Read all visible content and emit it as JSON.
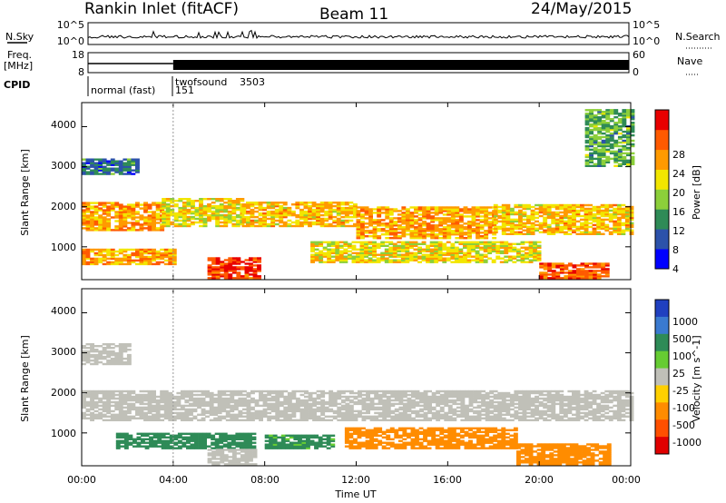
{
  "header": {
    "station": "Rankin Inlet (fitACF)",
    "beam": "Beam 11",
    "date": "24/May/2015"
  },
  "noise_panel": {
    "left_label": "N.Sky",
    "right_label": "N.Search",
    "left_ticks": [
      "10^5",
      "10^0"
    ],
    "right_ticks": [
      "10^5",
      "10^0"
    ]
  },
  "freq_panel": {
    "left_label_1": "Freq.",
    "left_label_2": "[MHz]",
    "right_label": "Nave",
    "left_ticks": [
      "18",
      "8"
    ],
    "right_ticks": [
      "60",
      "0"
    ]
  },
  "cpid_panel": {
    "label": "CPID",
    "modes": [
      {
        "name": "normal (fast)",
        "id": "151",
        "start_hour": 0,
        "end_hour": 4
      },
      {
        "name": "twofsound",
        "id": "3503",
        "start_hour": 4,
        "end_hour": 24
      }
    ]
  },
  "axes": {
    "xlabel": "Time UT",
    "x_tick_labels": [
      "00:00",
      "04:00",
      "08:00",
      "12:00",
      "16:00",
      "20:00",
      "00:00"
    ],
    "x_ticks_hours": [
      0,
      4,
      8,
      12,
      16,
      20,
      24
    ],
    "ylabel": "Slant Range [km]",
    "y_tick_labels": [
      "1000",
      "2000",
      "3000",
      "4000"
    ],
    "y_ticks": [
      1000,
      2000,
      3000,
      4000
    ],
    "ylim": [
      180,
      4600
    ],
    "xlim_hours": [
      0,
      24
    ]
  },
  "power_colorbar": {
    "label": "Power [dB]",
    "tick_labels": [
      "4",
      "8",
      "12",
      "16",
      "20",
      "24",
      "28"
    ],
    "colors": [
      "#0000ff",
      "#2c52aa",
      "#2f8b57",
      "#8ccf3a",
      "#f2e600",
      "#ff9a00",
      "#ff5a00",
      "#e80000"
    ]
  },
  "velocity_colorbar": {
    "label": "Velocity [m s^-1]",
    "tick_labels": [
      "1000",
      "500",
      "100",
      "25",
      "-25",
      "-100",
      "-500",
      "-1000"
    ],
    "colors": [
      "#2040c0",
      "#3a7ad0",
      "#2e8b57",
      "#66cc33",
      "#c0c0b8",
      "#ffd000",
      "#ff8c00",
      "#ff5000",
      "#e00000"
    ]
  },
  "chart_data": [
    {
      "type": "heatmap",
      "title": "",
      "xlabel": "",
      "ylabel": "Slant Range [km]",
      "quantity": "Power [dB]",
      "bands": [
        {
          "t0": 0.0,
          "t1": 3.5,
          "r0": 1400,
          "r1": 2100,
          "value": 22
        },
        {
          "t0": 3.5,
          "t1": 7.0,
          "r0": 1500,
          "r1": 2200,
          "value": 18
        },
        {
          "t0": 7.0,
          "t1": 12.0,
          "r0": 1500,
          "r1": 2100,
          "value": 20
        },
        {
          "t0": 12.0,
          "t1": 18.0,
          "r0": 1200,
          "r1": 2000,
          "value": 22
        },
        {
          "t0": 18.0,
          "t1": 24.0,
          "r0": 1300,
          "r1": 2050,
          "value": 20
        },
        {
          "t0": 0.0,
          "t1": 4.0,
          "r0": 550,
          "r1": 950,
          "value": 22
        },
        {
          "t0": 5.5,
          "t1": 7.8,
          "r0": 200,
          "r1": 700,
          "value": 28
        },
        {
          "t0": 10.0,
          "t1": 20.0,
          "r0": 600,
          "r1": 1100,
          "value": 18
        },
        {
          "t0": 20.0,
          "t1": 23.0,
          "r0": 200,
          "r1": 600,
          "value": 26
        },
        {
          "t0": 0.0,
          "t1": 2.5,
          "r0": 2800,
          "r1": 3200,
          "value": 8
        },
        {
          "t0": 22.0,
          "t1": 24.0,
          "r0": 3000,
          "r1": 4400,
          "value": 12
        }
      ]
    },
    {
      "type": "heatmap",
      "title": "",
      "xlabel": "Time UT",
      "ylabel": "Slant Range [km]",
      "quantity": "Velocity [m s^-1]",
      "bands": [
        {
          "t0": 0.0,
          "t1": 24.0,
          "r0": 1300,
          "r1": 2050,
          "value": 0
        },
        {
          "t0": 0.0,
          "t1": 2.0,
          "r0": 2700,
          "r1": 3200,
          "value": 0
        },
        {
          "t0": 1.5,
          "t1": 7.5,
          "r0": 600,
          "r1": 1000,
          "value": 200
        },
        {
          "t0": 8.0,
          "t1": 11.0,
          "r0": 600,
          "r1": 950,
          "value": 150
        },
        {
          "t0": 11.5,
          "t1": 19.0,
          "r0": 600,
          "r1": 1100,
          "value": -300
        },
        {
          "t0": 19.0,
          "t1": 23.0,
          "r0": 200,
          "r1": 700,
          "value": -400
        },
        {
          "t0": 5.5,
          "t1": 7.5,
          "r0": 200,
          "r1": 600,
          "value": 0
        }
      ]
    }
  ]
}
